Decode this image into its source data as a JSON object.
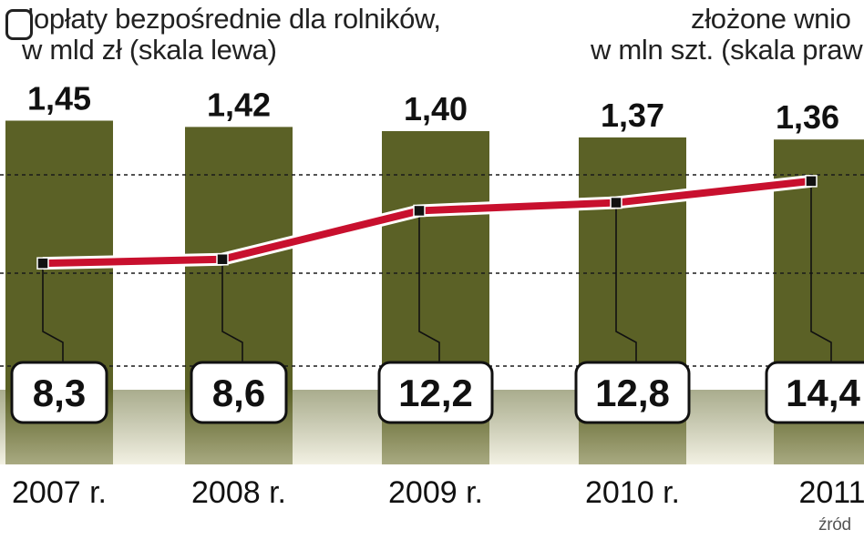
{
  "legend": {
    "bars_line1": "dopłaty bezpośrednie dla rolników,",
    "bars_line2": "w mld zł (skala lewa)",
    "line_line1": "złożone wnio",
    "line_line2": "w mln szt. (skala praw"
  },
  "source_text": "źród",
  "colors": {
    "bar": "#5b6126",
    "line": "#c8102e",
    "bottom_band": "#d6d1b0",
    "marker": "#111111"
  },
  "chart_data": {
    "type": "bar",
    "categories": [
      "2007 r.",
      "2008 r.",
      "2009 r.",
      "2010 r.",
      "2011"
    ],
    "series": [
      {
        "name": "dopłaty bezpośrednie dla rolników, w mld zł (skala lewa)",
        "type": "bar",
        "axis": "left",
        "values": [
          1.45,
          1.42,
          1.4,
          1.37,
          1.36
        ],
        "labels": [
          "1,45",
          "1,42",
          "1,40",
          "1,37",
          "1,36"
        ]
      },
      {
        "name": "złożone wnio… w mln szt. (skala praw…)",
        "type": "line",
        "axis": "right",
        "values": [
          8.3,
          8.6,
          12.2,
          12.8,
          14.4
        ],
        "labels": [
          "8,3",
          "8,6",
          "12,2",
          "12,8",
          "14,4"
        ]
      }
    ],
    "grid": true
  }
}
